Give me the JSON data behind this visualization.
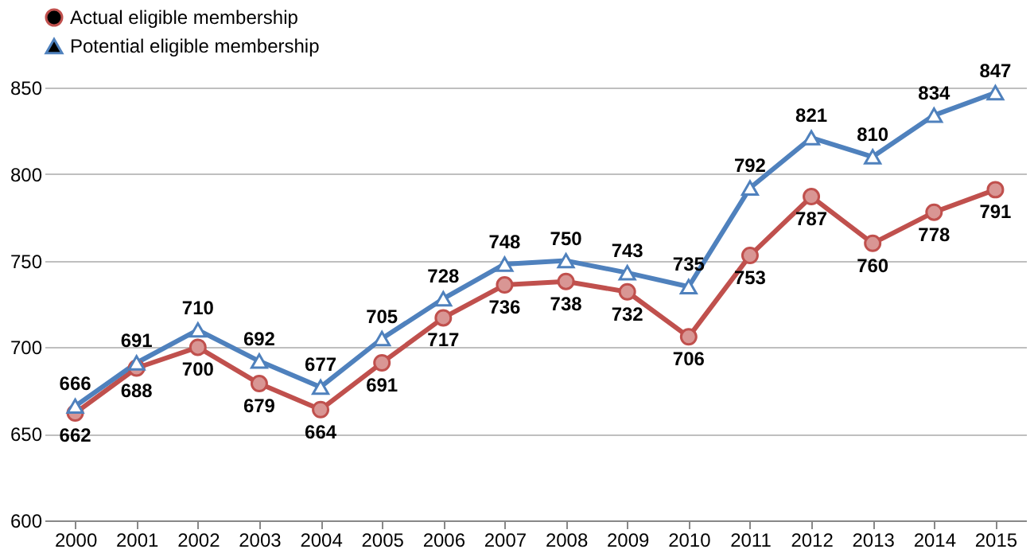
{
  "chart_data": {
    "type": "line",
    "categories": [
      "2000",
      "2001",
      "2002",
      "2003",
      "2004",
      "2005",
      "2006",
      "2007",
      "2008",
      "2009",
      "2010",
      "2011",
      "2012",
      "2013",
      "2014",
      "2015"
    ],
    "series": [
      {
        "name": "Actual eligible membership",
        "color": "#c0504d",
        "marker": "circle",
        "values": [
          662,
          688,
          700,
          679,
          664,
          691,
          717,
          736,
          738,
          732,
          706,
          753,
          787,
          760,
          778,
          791
        ]
      },
      {
        "name": "Potential eligible membership",
        "color": "#4f81bd",
        "marker": "triangle",
        "values": [
          666,
          691,
          710,
          692,
          677,
          705,
          728,
          748,
          750,
          743,
          735,
          792,
          821,
          810,
          834,
          847
        ]
      }
    ],
    "ylim": [
      600,
      850
    ],
    "yticks": [
      600,
      650,
      700,
      750,
      800,
      850
    ],
    "grid": "y",
    "legend": "top",
    "data_labels": true
  }
}
